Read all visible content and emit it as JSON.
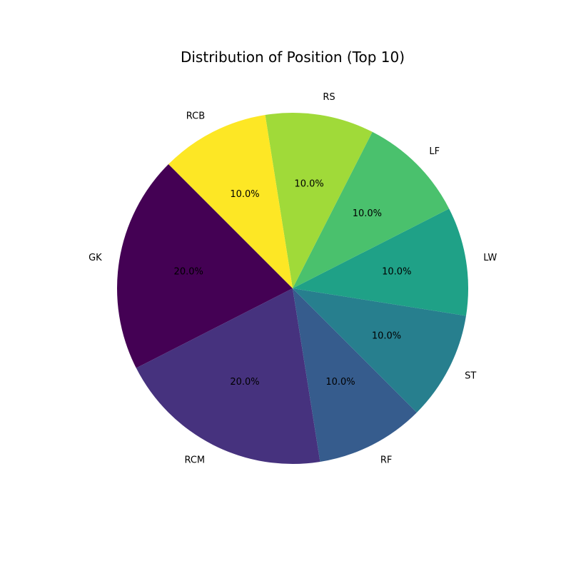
{
  "chart_data": {
    "type": "pie",
    "title": "Distribution of Position (Top 10)",
    "labels": [
      "GK",
      "RCM",
      "RF",
      "ST",
      "LW",
      "LF",
      "RS",
      "RCB"
    ],
    "values": [
      20.0,
      20.0,
      10.0,
      10.0,
      10.0,
      10.0,
      10.0,
      10.0
    ],
    "percent_labels": [
      "20.0%",
      "20.0%",
      "10.0%",
      "10.0%",
      "10.0%",
      "10.0%",
      "10.0%",
      "10.0%"
    ],
    "colors": [
      "#440154",
      "#46327e",
      "#365c8d",
      "#277f8e",
      "#1fa187",
      "#4ac16d",
      "#a0da39",
      "#fde725"
    ],
    "start_angle_deg": 135,
    "direction": "counterclockwise"
  }
}
